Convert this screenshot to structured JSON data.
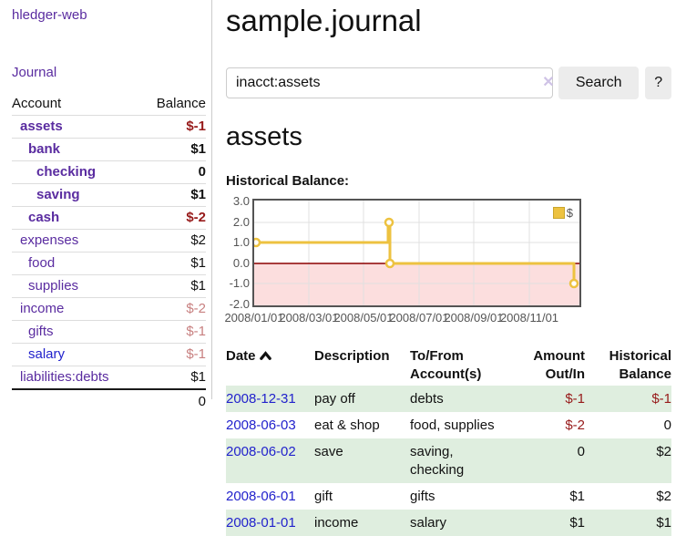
{
  "app": {
    "brand": "hledger-web"
  },
  "sidebar": {
    "journal_link": "Journal",
    "headers": {
      "account": "Account",
      "balance": "Balance"
    },
    "accounts": [
      {
        "name": "assets",
        "depth": 0,
        "bold": true,
        "link_color": "purple",
        "balance": "$-1",
        "balance_style": "neg"
      },
      {
        "name": "bank",
        "depth": 1,
        "bold": true,
        "link_color": "purple",
        "balance": "$1",
        "balance_style": "pos"
      },
      {
        "name": "checking",
        "depth": 2,
        "bold": true,
        "link_color": "purple",
        "balance": "0",
        "balance_style": "pos"
      },
      {
        "name": "saving",
        "depth": 2,
        "bold": true,
        "link_color": "purple",
        "balance": "$1",
        "balance_style": "pos"
      },
      {
        "name": "cash",
        "depth": 1,
        "bold": true,
        "link_color": "purple",
        "balance": "$-2",
        "balance_style": "neg"
      },
      {
        "name": "expenses",
        "depth": 0,
        "bold": false,
        "link_color": "purple",
        "balance": "$2",
        "balance_style": "pos"
      },
      {
        "name": "food",
        "depth": 1,
        "bold": false,
        "link_color": "purple",
        "balance": "$1",
        "balance_style": "pos"
      },
      {
        "name": "supplies",
        "depth": 1,
        "bold": false,
        "link_color": "purple",
        "balance": "$1",
        "balance_style": "pos"
      },
      {
        "name": "income",
        "depth": 0,
        "bold": false,
        "link_color": "purple",
        "balance": "$-2",
        "balance_style": "neg-light"
      },
      {
        "name": "gifts",
        "depth": 1,
        "bold": false,
        "link_color": "purple",
        "balance": "$-1",
        "balance_style": "neg-light"
      },
      {
        "name": "salary",
        "depth": 1,
        "bold": false,
        "link_color": "blue",
        "balance": "$-1",
        "balance_style": "neg-light"
      },
      {
        "name": "liabilities:debts",
        "depth": 0,
        "bold": false,
        "link_color": "purple",
        "balance": "$1",
        "balance_style": "pos"
      }
    ],
    "total": "0"
  },
  "header": {
    "title": "sample.journal"
  },
  "search": {
    "value": "inacct:assets",
    "clear_icon": "✕",
    "button_label": "Search",
    "help_label": "?"
  },
  "account_page": {
    "title": "assets",
    "chart_label": "Historical Balance:"
  },
  "chart_data": {
    "type": "line",
    "title": "Historical Balance:",
    "step": true,
    "series": [
      {
        "name": "$",
        "color": "#edc240",
        "points": [
          {
            "date": "2008-01-01",
            "balance": 1
          },
          {
            "date": "2008-06-01",
            "balance": 2
          },
          {
            "date": "2008-06-02",
            "balance": 2
          },
          {
            "date": "2008-06-03",
            "balance": 0
          },
          {
            "date": "2008-12-31",
            "balance": -1
          }
        ]
      }
    ],
    "ylim": [
      -2,
      3
    ],
    "y_ticks": [
      "3.0",
      "2.0",
      "1.0",
      "0.0",
      "-1.0",
      "-2.0"
    ],
    "x_ticks": [
      "2008/01/01",
      "2008/03/01",
      "2008/05/01",
      "2008/07/01",
      "2008/09/01",
      "2008/11/01"
    ],
    "grid": true,
    "legend": "$",
    "legend_position": "top-right",
    "negative_region_fill": "#fcdede",
    "zero_line_color": "#8b0000",
    "accent_color": "#edc240"
  },
  "register": {
    "headers": {
      "date": "Date",
      "description": "Description",
      "accounts": "To/From Account(s)",
      "amount": "Amount Out/In",
      "balance": "Historical Balance"
    },
    "sort_icon": "chevron-up-icon",
    "rows": [
      {
        "date": "2008-12-31",
        "description": "pay off",
        "accounts": "debts",
        "amount": "$-1",
        "amount_neg": true,
        "balance": "$-1",
        "balance_neg": true,
        "shaded": true
      },
      {
        "date": "2008-06-03",
        "description": "eat & shop",
        "accounts": "food, supplies",
        "amount": "$-2",
        "amount_neg": true,
        "balance": "0",
        "balance_neg": false,
        "shaded": false
      },
      {
        "date": "2008-06-02",
        "description": "save",
        "accounts": "saving, checking",
        "amount": "0",
        "amount_neg": false,
        "balance": "$2",
        "balance_neg": false,
        "shaded": true
      },
      {
        "date": "2008-06-01",
        "description": "gift",
        "accounts": "gifts",
        "amount": "$1",
        "amount_neg": false,
        "balance": "$2",
        "balance_neg": false,
        "shaded": false
      },
      {
        "date": "2008-01-01",
        "description": "income",
        "accounts": "salary",
        "amount": "$1",
        "amount_neg": false,
        "balance": "$1",
        "balance_neg": false,
        "shaded": true
      }
    ]
  }
}
